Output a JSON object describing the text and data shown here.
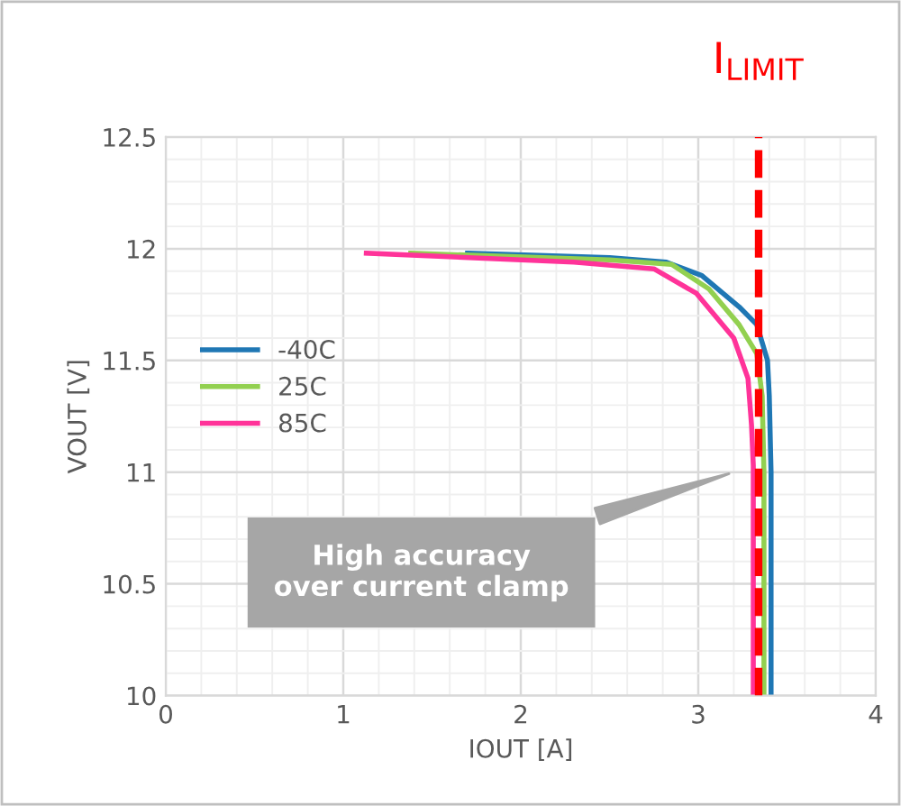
{
  "chart_data": {
    "type": "line",
    "xlabel": "IOUT [A]",
    "ylabel": "VOUT [V]",
    "xlim": [
      0,
      4
    ],
    "xticks": [
      0,
      1,
      2,
      3,
      4
    ],
    "ylim": [
      10,
      12.5
    ],
    "yticks": [
      10,
      10.5,
      11,
      11.5,
      12,
      12.5
    ],
    "grid": true,
    "legend": "left",
    "marker": "none",
    "line_style": "solid",
    "series": [
      {
        "name": "-40C",
        "color": "#1f77b4",
        "x": [
          1.7,
          2.5,
          2.82,
          3.02,
          3.23,
          3.33,
          3.39,
          3.4,
          3.41,
          3.41
        ],
        "values": [
          11.98,
          11.96,
          11.94,
          11.88,
          11.74,
          11.66,
          11.5,
          11.34,
          11.0,
          10.0
        ]
      },
      {
        "name": "25C",
        "color": "#92d050",
        "x": [
          1.38,
          2.5,
          2.85,
          3.06,
          3.23,
          3.33,
          3.36,
          3.37,
          3.37
        ],
        "values": [
          11.98,
          11.95,
          11.93,
          11.82,
          11.66,
          11.53,
          11.34,
          11.0,
          10.0
        ]
      },
      {
        "name": "85C",
        "color": "#ff3399",
        "x": [
          1.13,
          2.3,
          2.75,
          2.99,
          3.2,
          3.28,
          3.3,
          3.31,
          3.31
        ],
        "values": [
          11.98,
          11.94,
          11.91,
          11.8,
          11.6,
          11.42,
          11.21,
          11.03,
          10.0
        ]
      }
    ],
    "ref_lines": [
      {
        "axis": "x",
        "value": 3.34,
        "label": "I$_{LIMIT}$",
        "color": "#ff0000",
        "line_style": "dashed"
      }
    ],
    "annotations": [
      "High accuracy\nover current clamp"
    ]
  }
}
